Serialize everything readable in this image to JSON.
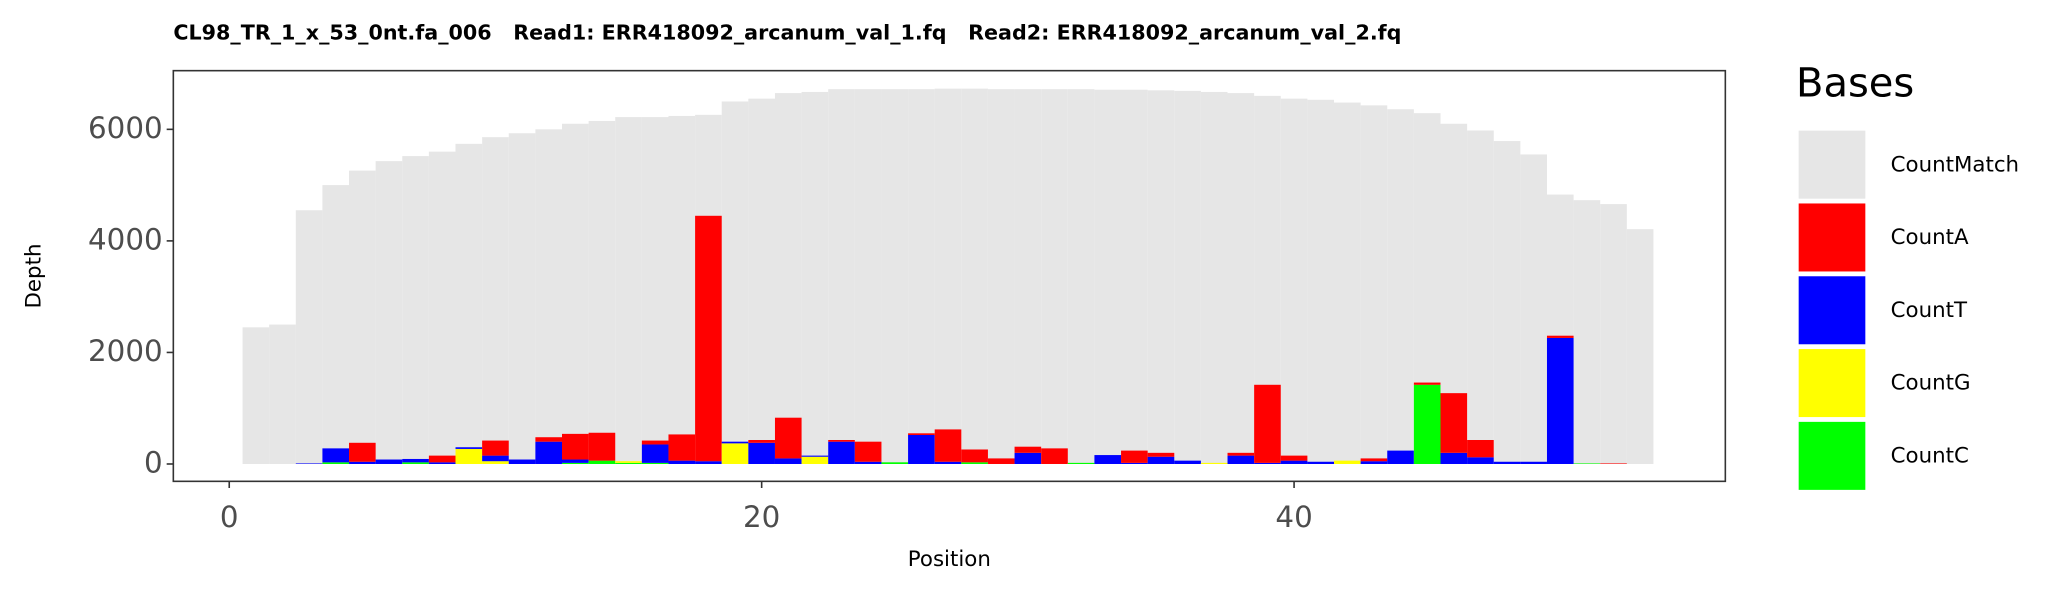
{
  "chart_data": {
    "type": "bar",
    "title": "CL98_TR_1_x_53_0nt.fa_006   Read1: ERR418092_arcanum_val_1.fq   Read2: ERR418092_arcanum_val_2.fq",
    "x_label": "Position",
    "y_label": "Depth",
    "legend_title": "Bases",
    "legend": "right",
    "grid": false,
    "x": [
      1,
      2,
      3,
      4,
      5,
      6,
      7,
      8,
      9,
      10,
      11,
      12,
      13,
      14,
      15,
      16,
      17,
      18,
      19,
      20,
      21,
      22,
      23,
      24,
      25,
      26,
      27,
      28,
      29,
      30,
      31,
      32,
      33,
      34,
      35,
      36,
      37,
      38,
      39,
      40,
      41,
      42,
      43,
      44,
      45,
      46,
      47,
      48,
      49,
      50,
      51,
      52,
      53
    ],
    "xlim": [
      -2.1,
      56.2
    ],
    "xticks": [
      0,
      20,
      40
    ],
    "ylim": [
      -311,
      7052
    ],
    "yticks": [
      0,
      2000,
      4000,
      6000
    ],
    "series": [
      {
        "name": "CountMatch",
        "color": "#e6e6e6",
        "stack": false,
        "values": [
          2450,
          2500,
          4550,
          5000,
          5260,
          5430,
          5520,
          5600,
          5740,
          5860,
          5930,
          6000,
          6100,
          6150,
          6220,
          6220,
          6240,
          6260,
          6500,
          6550,
          6650,
          6670,
          6720,
          6720,
          6720,
          6720,
          6730,
          6730,
          6720,
          6720,
          6720,
          6720,
          6710,
          6710,
          6700,
          6690,
          6670,
          6650,
          6600,
          6550,
          6530,
          6480,
          6430,
          6360,
          6290,
          6100,
          5980,
          5790,
          5550,
          4830,
          4730,
          4660,
          4210
        ]
      },
      {
        "name": "CountA",
        "color": "#ff0000",
        "stack": true,
        "values": [
          0,
          0,
          0,
          0,
          340,
          0,
          0,
          120,
          0,
          270,
          0,
          80,
          460,
          500,
          0,
          70,
          470,
          4400,
          0,
          50,
          730,
          0,
          30,
          360,
          0,
          30,
          580,
          230,
          100,
          110,
          280,
          0,
          0,
          220,
          70,
          0,
          0,
          50,
          1400,
          90,
          0,
          0,
          50,
          0,
          40,
          1070,
          310,
          0,
          0,
          40,
          0,
          10,
          0
        ]
      },
      {
        "name": "CountT",
        "color": "#0000ff",
        "stack": true,
        "values": [
          0,
          0,
          10,
          250,
          40,
          80,
          60,
          30,
          30,
          100,
          80,
          400,
          60,
          0,
          0,
          330,
          60,
          50,
          30,
          380,
          100,
          20,
          400,
          40,
          0,
          520,
          40,
          0,
          0,
          200,
          0,
          0,
          160,
          20,
          130,
          60,
          0,
          150,
          20,
          60,
          40,
          0,
          50,
          240,
          0,
          200,
          120,
          40,
          40,
          2260,
          0,
          0,
          0
        ]
      },
      {
        "name": "CountG",
        "color": "#ffff00",
        "stack": true,
        "values": [
          0,
          0,
          0,
          0,
          0,
          0,
          0,
          0,
          270,
          50,
          0,
          0,
          0,
          0,
          30,
          0,
          0,
          0,
          370,
          0,
          0,
          130,
          0,
          0,
          0,
          0,
          0,
          0,
          0,
          0,
          0,
          0,
          0,
          0,
          0,
          0,
          20,
          0,
          0,
          0,
          0,
          60,
          0,
          0,
          0,
          0,
          0,
          0,
          0,
          0,
          0,
          0,
          0
        ]
      },
      {
        "name": "CountC",
        "color": "#00ff00",
        "stack": true,
        "values": [
          0,
          0,
          0,
          30,
          0,
          0,
          30,
          0,
          0,
          0,
          0,
          0,
          20,
          60,
          20,
          20,
          0,
          0,
          0,
          0,
          0,
          0,
          0,
          0,
          30,
          0,
          0,
          30,
          0,
          0,
          0,
          20,
          0,
          0,
          0,
          0,
          0,
          0,
          0,
          0,
          0,
          0,
          0,
          0,
          1420,
          0,
          0,
          0,
          0,
          0,
          10,
          0,
          0
        ]
      }
    ]
  }
}
